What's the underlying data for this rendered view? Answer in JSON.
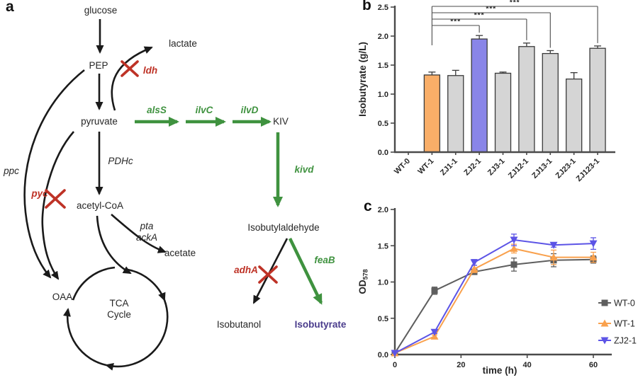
{
  "figure": {
    "panel_a_label": "a",
    "panel_b_label": "b",
    "panel_c_label": "c"
  },
  "diagram": {
    "metabolites": {
      "glucose": "glucose",
      "pep": "PEP",
      "lactate": "lactate",
      "pyruvate": "pyruvate",
      "kiv": "KIV",
      "acetyl_coa": "acetyl-CoA",
      "acetate": "acetate",
      "oaa": "OAA",
      "tca": "TCA\nCycle",
      "isobutylaldehyde": "Isobutylaldehyde",
      "isobutanol": "Isobutanol",
      "isobutyrate": "Isobutyrate"
    },
    "genes": {
      "ldh": "ldh",
      "ppc": "ppc",
      "pyc": "pyc",
      "pdhc": "PDHc",
      "pta_acka": "pta\nackA",
      "alss": "alsS",
      "ilvc": "ilvC",
      "ilvd": "ilvD",
      "kivd": "kivd",
      "adha": "adhA",
      "feab": "feaB"
    },
    "colors": {
      "overexpressed_green": "#3F923F",
      "knockout_red": "#BE3226",
      "product_purple": "#4A3C8C",
      "pathway_black": "#1A1A1A"
    }
  },
  "chart_data": [
    {
      "type": "bar",
      "title": "",
      "ylabel": "Isobutyrate (g/L)",
      "ylim": [
        0,
        2.5
      ],
      "yticks": [
        0.0,
        0.5,
        1.0,
        1.5,
        2.0,
        2.5
      ],
      "grid": false,
      "categories": [
        "WT-0",
        "WT-1",
        "ZJ1-1",
        "ZJ2-1",
        "ZJ3-1",
        "ZJ12-1",
        "ZJ13-1",
        "ZJ23-1",
        "ZJ123-1"
      ],
      "values": [
        0,
        1.33,
        1.32,
        1.95,
        1.36,
        1.82,
        1.7,
        1.26,
        1.79
      ],
      "errors": [
        0,
        0.05,
        0.09,
        0.06,
        0.02,
        0.06,
        0.05,
        0.11,
        0.04
      ],
      "bar_colors": [
        "#D5D5D5",
        "#F9AE68",
        "#D5D5D5",
        "#8985E8",
        "#D5D5D5",
        "#D5D5D5",
        "#D5D5D5",
        "#D5D5D5",
        "#D5D5D5"
      ],
      "bar_outline": "#3A3A3A",
      "significance": [
        {
          "from": "WT-1",
          "to": "ZJ2-1",
          "label": "***"
        },
        {
          "from": "WT-1",
          "to": "ZJ12-1",
          "label": "***"
        },
        {
          "from": "WT-1",
          "to": "ZJ13-1",
          "label": "***"
        },
        {
          "from": "WT-1",
          "to": "ZJ123-1",
          "label": "***"
        }
      ]
    },
    {
      "type": "line",
      "title": "",
      "xlabel": "time (h)",
      "ylabel": "OD",
      "ylabel_subscript": "578",
      "xlim": [
        0,
        65
      ],
      "ylim": [
        0,
        2.0
      ],
      "xticks": [
        0,
        20,
        40,
        60
      ],
      "yticks": [
        0.0,
        0.5,
        1.0,
        1.5,
        2.0
      ],
      "grid": false,
      "legend_position": "right",
      "x": [
        0,
        12,
        24,
        36,
        48,
        60
      ],
      "series": [
        {
          "name": "WT-0",
          "color": "#5E5E5E",
          "marker": "square",
          "values": [
            0.02,
            0.88,
            1.14,
            1.24,
            1.3,
            1.31
          ],
          "errors": [
            0,
            0.05,
            0.03,
            0.09,
            0.09,
            0.05
          ]
        },
        {
          "name": "WT-1",
          "color": "#F9A14D",
          "marker": "triangle-up",
          "values": [
            0.02,
            0.25,
            1.18,
            1.46,
            1.34,
            1.34
          ],
          "errors": [
            0,
            0.02,
            0.05,
            0.06,
            0.1,
            0.07
          ]
        },
        {
          "name": "ZJ2-1",
          "color": "#5C54E6",
          "marker": "triangle-down",
          "values": [
            0.02,
            0.31,
            1.27,
            1.58,
            1.51,
            1.53
          ],
          "errors": [
            0,
            0.02,
            0.04,
            0.08,
            0.03,
            0.08
          ]
        }
      ]
    }
  ]
}
